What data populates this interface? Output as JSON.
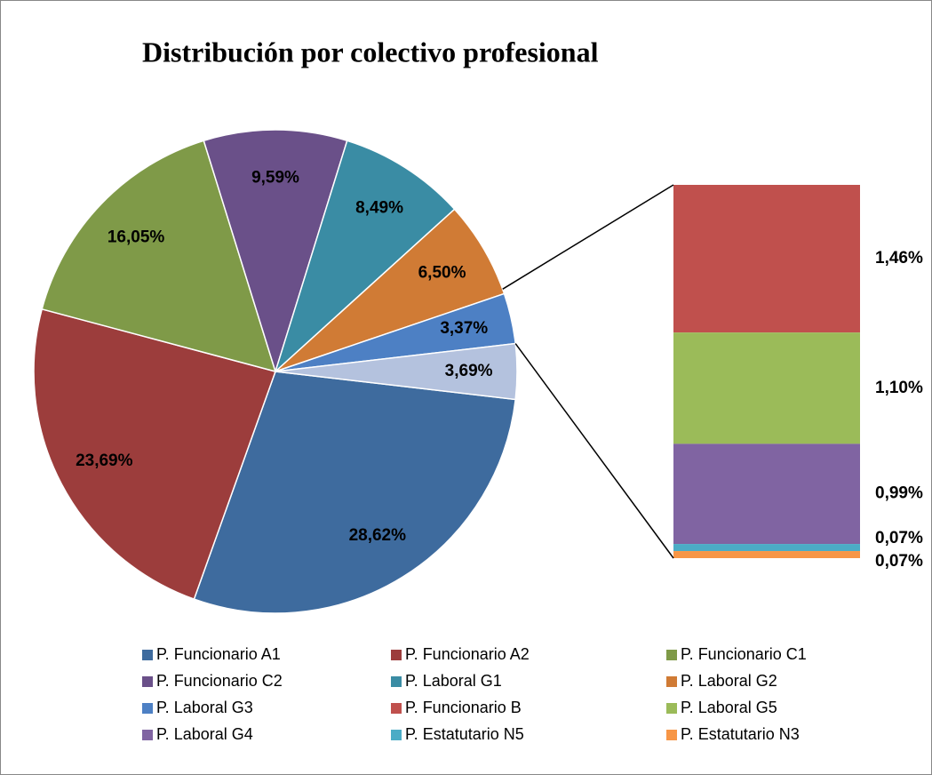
{
  "chart_data": {
    "type": "pie-of-bar",
    "title": "Distribución por colectivo profesional",
    "pie": {
      "categories": [
        "P. Funcionario A1",
        "P. Funcionario A2",
        "P. Funcionario C1",
        "P. Funcionario C2",
        "P. Laboral G1",
        "P. Laboral G2",
        "P. Laboral G3",
        null
      ],
      "values": [
        28.62,
        23.69,
        16.05,
        9.59,
        8.49,
        6.5,
        3.37,
        3.69
      ],
      "value_labels": [
        "28,62%",
        "23,69%",
        "16,05%",
        "9,59%",
        "8,49%",
        "6,50%",
        "3,37%",
        "3,69%"
      ],
      "colors": [
        "#3e6b9e",
        "#9c3d3c",
        "#7f9a48",
        "#6a5089",
        "#3a8ca4",
        "#d07b35",
        "#4d80c4",
        "#b4c2de"
      ]
    },
    "bar": {
      "categories": [
        "P. Funcionario B",
        "P. Laboral G5",
        "P. Laboral G4",
        "P. Estatutario N5",
        "P. Estatutario N3"
      ],
      "values": [
        1.46,
        1.1,
        0.99,
        0.07,
        0.07
      ],
      "value_labels": [
        "1,46%",
        "1,10%",
        "0,99%",
        "0,07%",
        "0,07%"
      ],
      "colors": [
        "#c0504d",
        "#9bbb59",
        "#8064a2",
        "#4bacc6",
        "#f79646"
      ]
    }
  }
}
